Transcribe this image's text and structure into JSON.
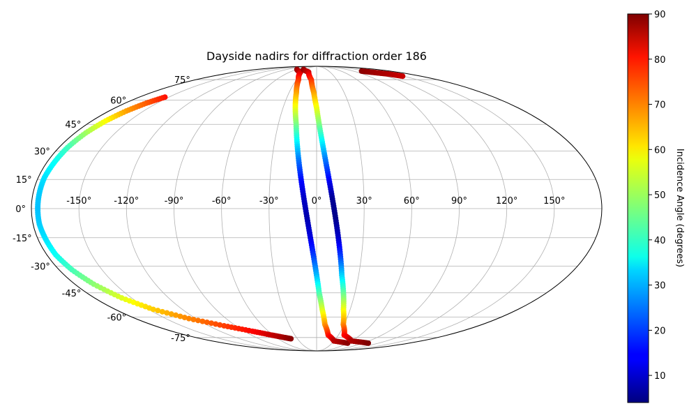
{
  "chart_data": {
    "type": "scatter",
    "projection": "mollweide",
    "title": "Dayside nadirs for diffraction order 186",
    "grid": true,
    "x_tick_labels": [
      "-150°",
      "-120°",
      "-90°",
      "-60°",
      "-30°",
      "0°",
      "30°",
      "60°",
      "90°",
      "120°",
      "150°"
    ],
    "x_tick_values": [
      -150,
      -120,
      -90,
      -60,
      -30,
      0,
      30,
      60,
      90,
      120,
      150
    ],
    "y_tick_labels": [
      "-75°",
      "-60°",
      "-45°",
      "-30°",
      "-15°",
      "0°",
      "15°",
      "30°",
      "45°",
      "60°",
      "75°"
    ],
    "y_tick_values": [
      -75,
      -60,
      -45,
      -30,
      -15,
      0,
      15,
      30,
      45,
      60,
      75
    ],
    "xlim": [
      -180,
      180
    ],
    "ylim": [
      -90,
      90
    ],
    "colorbar": {
      "label": "Incidence Angle (degrees)",
      "colormap": "jet",
      "range": [
        4,
        90
      ],
      "tick_labels": [
        "10",
        "20",
        "30",
        "40",
        "50",
        "60",
        "70",
        "80",
        "90"
      ],
      "tick_values": [
        10,
        20,
        30,
        40,
        50,
        60,
        70,
        80,
        90
      ]
    },
    "series": [
      {
        "values": [
          {
            "x": -154,
            "y": 62,
            "c": 78
          },
          {
            "x": -160,
            "y": 58,
            "c": 72
          },
          {
            "x": -165,
            "y": 53,
            "c": 66
          },
          {
            "x": -169,
            "y": 47,
            "c": 58
          },
          {
            "x": -172,
            "y": 40,
            "c": 50
          },
          {
            "x": -174,
            "y": 32,
            "c": 42
          },
          {
            "x": -175,
            "y": 24,
            "c": 37
          },
          {
            "x": -176,
            "y": 16,
            "c": 34
          },
          {
            "x": -176,
            "y": 8,
            "c": 32
          },
          {
            "x": -176,
            "y": 0,
            "c": 31
          },
          {
            "x": -176,
            "y": -8,
            "c": 32
          },
          {
            "x": -175,
            "y": -16,
            "c": 34
          },
          {
            "x": -174,
            "y": -24,
            "c": 37
          },
          {
            "x": -171,
            "y": -32,
            "c": 42
          },
          {
            "x": -166,
            "y": -40,
            "c": 48
          },
          {
            "x": -158,
            "y": -48,
            "c": 55
          },
          {
            "x": -146,
            "y": -55,
            "c": 62
          },
          {
            "x": -127,
            "y": -61,
            "c": 68
          },
          {
            "x": -103,
            "y": -66,
            "c": 74
          },
          {
            "x": -80,
            "y": -70,
            "c": 79
          },
          {
            "x": -62,
            "y": -73,
            "c": 84
          },
          {
            "x": -48,
            "y": -75,
            "c": 87
          },
          {
            "x": -40,
            "y": -76,
            "c": 89
          }
        ]
      },
      {
        "values": [
          {
            "x": -60,
            "y": 85,
            "c": 89
          },
          {
            "x": -36,
            "y": 82,
            "c": 84
          },
          {
            "x": -27,
            "y": 75,
            "c": 76
          },
          {
            "x": -22,
            "y": 65,
            "c": 66
          },
          {
            "x": -19,
            "y": 55,
            "c": 57
          },
          {
            "x": -16,
            "y": 45,
            "c": 47
          },
          {
            "x": -14,
            "y": 35,
            "c": 36
          },
          {
            "x": -12,
            "y": 25,
            "c": 25
          },
          {
            "x": -10,
            "y": 15,
            "c": 16
          },
          {
            "x": -8,
            "y": 5,
            "c": 10
          },
          {
            "x": -6,
            "y": -5,
            "c": 8
          },
          {
            "x": -4,
            "y": -15,
            "c": 12
          },
          {
            "x": -2,
            "y": -25,
            "c": 20
          },
          {
            "x": 0,
            "y": -35,
            "c": 30
          },
          {
            "x": 2,
            "y": -45,
            "c": 42
          },
          {
            "x": 5,
            "y": -55,
            "c": 54
          },
          {
            "x": 9,
            "y": -65,
            "c": 66
          },
          {
            "x": 16,
            "y": -73,
            "c": 77
          },
          {
            "x": 30,
            "y": -78,
            "c": 85
          },
          {
            "x": 60,
            "y": -80,
            "c": 89
          }
        ]
      },
      {
        "values": [
          {
            "x": -40,
            "y": 85,
            "c": 89
          },
          {
            "x": -18,
            "y": 82,
            "c": 84
          },
          {
            "x": -8,
            "y": 75,
            "c": 76
          },
          {
            "x": -3,
            "y": 65,
            "c": 66
          },
          {
            "x": 0,
            "y": 55,
            "c": 57
          },
          {
            "x": 2,
            "y": 45,
            "c": 47
          },
          {
            "x": 4,
            "y": 35,
            "c": 36
          },
          {
            "x": 6,
            "y": 25,
            "c": 25
          },
          {
            "x": 8,
            "y": 15,
            "c": 15
          },
          {
            "x": 10,
            "y": 5,
            "c": 6
          },
          {
            "x": 12,
            "y": -5,
            "c": 5
          },
          {
            "x": 14,
            "y": -15,
            "c": 10
          },
          {
            "x": 16,
            "y": -25,
            "c": 20
          },
          {
            "x": 18,
            "y": -35,
            "c": 32
          },
          {
            "x": 21,
            "y": -45,
            "c": 44
          },
          {
            "x": 24,
            "y": -55,
            "c": 56
          },
          {
            "x": 29,
            "y": -65,
            "c": 67
          },
          {
            "x": 38,
            "y": -73,
            "c": 78
          },
          {
            "x": 60,
            "y": -78,
            "c": 86
          },
          {
            "x": 100,
            "y": -80,
            "c": 90
          }
        ]
      },
      {
        "values": [
          {
            "x": 110,
            "y": 83,
            "c": 89
          },
          {
            "x": 120,
            "y": 82,
            "c": 88
          },
          {
            "x": 130,
            "y": 81,
            "c": 87
          },
          {
            "x": 140,
            "y": 80,
            "c": 86
          },
          {
            "x": 148,
            "y": 78,
            "c": 84
          }
        ]
      }
    ]
  }
}
